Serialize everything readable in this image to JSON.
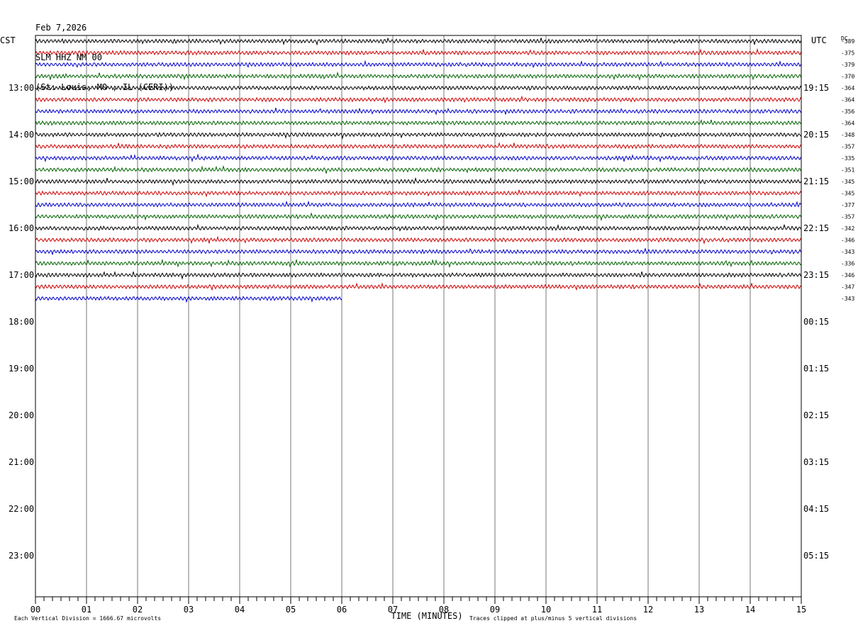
{
  "header": {
    "date": "Feb 7,2026",
    "station": "SLM HHZ NM 00",
    "location": "(St. Louis, MO , IL (CERI))"
  },
  "chart_data": {
    "type": "line",
    "title": "",
    "left_axis_label": "CST",
    "right_axis_label": "UTC",
    "dc_label": "DC",
    "xlabel": "TIME (MINUTES)",
    "x_ticks": [
      "00",
      "01",
      "02",
      "03",
      "04",
      "05",
      "06",
      "07",
      "08",
      "09",
      "10",
      "11",
      "12",
      "13",
      "14",
      "15"
    ],
    "xlim": [
      0,
      15
    ],
    "grid": true,
    "left_hour_labels": [
      "13:00",
      "14:00",
      "15:00",
      "16:00",
      "17:00",
      "18:00",
      "19:00",
      "20:00",
      "21:00",
      "22:00",
      "23:00"
    ],
    "right_hour_labels": [
      "19:15",
      "20:15",
      "21:15",
      "22:15",
      "23:15",
      "00:15",
      "01:15",
      "02:15",
      "03:15",
      "04:15",
      "05:15"
    ],
    "trace_colors": [
      "#000000",
      "#cc0000",
      "#0000cc",
      "#006400"
    ],
    "dc_offsets": [
      "-389",
      "-375",
      "-379",
      "-370",
      "-364",
      "-364",
      "-356",
      "-364",
      "-348",
      "-357",
      "-335",
      "-351",
      "-345",
      "-345",
      "-377",
      "-357",
      "-342",
      "-346",
      "-343",
      "-336",
      "-346",
      "-347",
      "-343"
    ],
    "trace_end_minutes": [
      15,
      15,
      15,
      15,
      15,
      15,
      15,
      15,
      15,
      15,
      15,
      15,
      15,
      15,
      15,
      15,
      15,
      15,
      15,
      15,
      15,
      15,
      6
    ],
    "footer_left": "Each Vertical Division = 1666.67 microvolts",
    "footer_right": "Traces clipped at plus/minus 5 vertical divisions"
  }
}
